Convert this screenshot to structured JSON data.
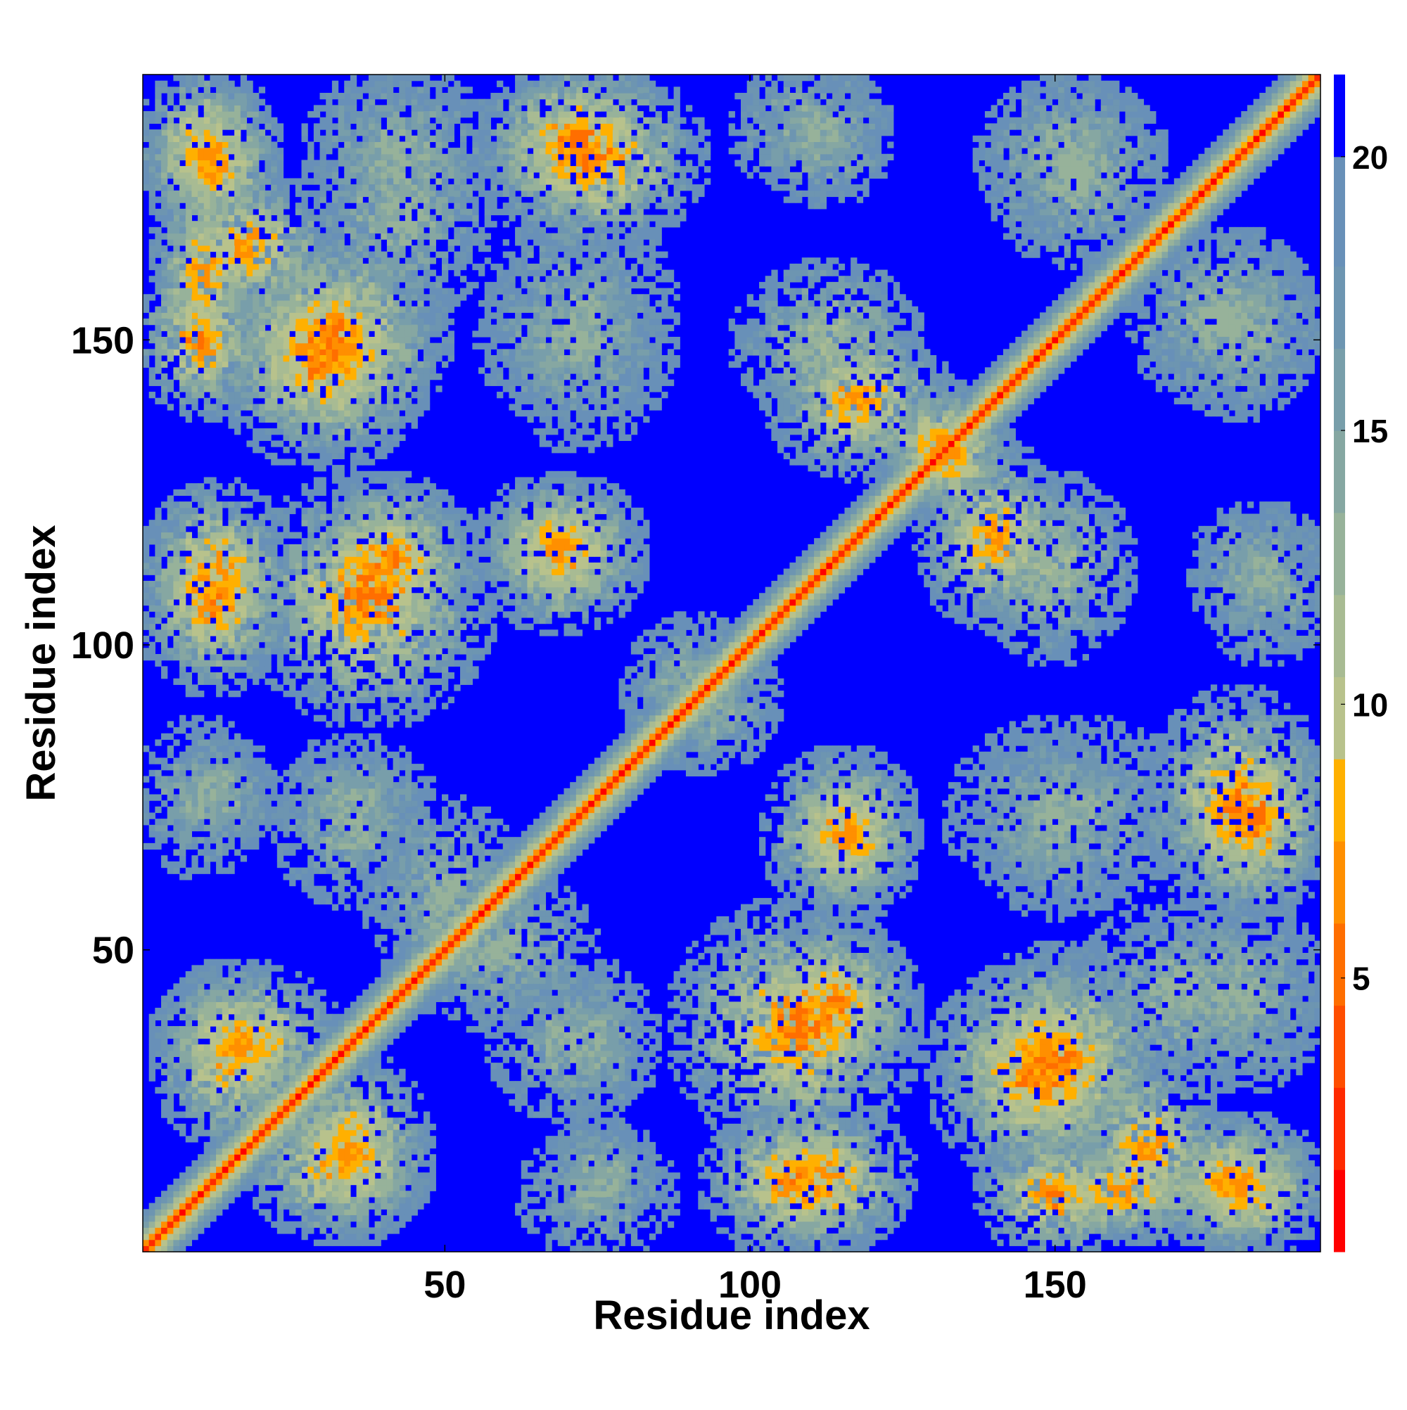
{
  "chart_data": {
    "type": "heatmap",
    "title": "",
    "xlabel": "Residue index",
    "ylabel": "Residue index",
    "xlim": [
      1,
      193
    ],
    "ylim": [
      1,
      193
    ],
    "x_ticks": [
      50,
      100,
      150
    ],
    "y_ticks": [
      50,
      100,
      150
    ],
    "colorbar": {
      "range": [
        0,
        21.5
      ],
      "ticks": [
        5,
        10,
        15,
        20
      ],
      "levels": [
        {
          "from": 0,
          "to": 1.5,
          "color": "#ff0000"
        },
        {
          "from": 1.5,
          "to": 3,
          "color": "#ff2a00"
        },
        {
          "from": 3,
          "to": 4.5,
          "color": "#ff4e00"
        },
        {
          "from": 4.5,
          "to": 6,
          "color": "#ff6e00"
        },
        {
          "from": 6,
          "to": 7.5,
          "color": "#ff8f00"
        },
        {
          "from": 7.5,
          "to": 9,
          "color": "#ffb000"
        },
        {
          "from": 9,
          "to": 10.5,
          "color": "#b8c28c"
        },
        {
          "from": 10.5,
          "to": 12,
          "color": "#a8bb93"
        },
        {
          "from": 12,
          "to": 13.5,
          "color": "#97b29a"
        },
        {
          "from": 13.5,
          "to": 15,
          "color": "#86a7a2"
        },
        {
          "from": 15,
          "to": 16.5,
          "color": "#789eaa"
        },
        {
          "from": 16.5,
          "to": 18,
          "color": "#6d95b1"
        },
        {
          "from": 18,
          "to": 20,
          "color": "#6890b8"
        },
        {
          "from": 20,
          "to": 21.5,
          "color": "#0000ff"
        }
      ]
    },
    "diagonal_band": {
      "core_distance": 3.8,
      "half_width_residues": 6
    },
    "contact_regions": [
      {
        "x": [
          5,
          16
        ],
        "y": [
          146,
          175
        ],
        "min_distance": 6
      },
      {
        "x": [
          4,
          20
        ],
        "y": [
          168,
          190
        ],
        "min_distance": 6
      },
      {
        "x": [
          30,
          55
        ],
        "y": [
          155,
          190
        ],
        "min_distance": 12
      },
      {
        "x": [
          58,
          85
        ],
        "y": [
          172,
          193
        ],
        "min_distance": 5
      },
      {
        "x": [
          100,
          120
        ],
        "y": [
          176,
          193
        ],
        "min_distance": 13
      },
      {
        "x": [
          142,
          165
        ],
        "y": [
          165,
          190
        ],
        "min_distance": 12
      },
      {
        "x": [
          15,
          45
        ],
        "y": [
          132,
          162
        ],
        "min_distance": 5
      },
      {
        "x": [
          58,
          82
        ],
        "y": [
          140,
          160
        ],
        "min_distance": 13
      },
      {
        "x": [
          100,
          125
        ],
        "y": [
          140,
          160
        ],
        "min_distance": 11
      },
      {
        "x": [
          170,
          190
        ],
        "y": [
          140,
          165
        ],
        "min_distance": 12
      },
      {
        "x": [
          30,
          52
        ],
        "y": [
          102,
          125
        ],
        "min_distance": 5
      },
      {
        "x": [
          3,
          22
        ],
        "y": [
          100,
          124
        ],
        "min_distance": 5
      },
      {
        "x": [
          58,
          80
        ],
        "y": [
          108,
          125
        ],
        "min_distance": 6
      },
      {
        "x": [
          130,
          150
        ],
        "y": [
          105,
          130
        ],
        "min_distance": 6
      },
      {
        "x": [
          175,
          190
        ],
        "y": [
          105,
          120
        ],
        "min_distance": 13
      },
      {
        "x": [
          8,
          20
        ],
        "y": [
          70,
          82
        ],
        "min_distance": 13
      },
      {
        "x": [
          25,
          45
        ],
        "y": [
          68,
          82
        ],
        "min_distance": 13
      },
      {
        "x": [
          105,
          125
        ],
        "y": [
          58,
          80
        ],
        "min_distance": 6
      },
      {
        "x": [
          135,
          170
        ],
        "y": [
          60,
          85
        ],
        "min_distance": 13
      },
      {
        "x": [
          168,
          192
        ],
        "y": [
          58,
          90
        ],
        "min_distance": 5
      },
      {
        "x": [
          90,
          125
        ],
        "y": [
          20,
          55
        ],
        "min_distance": 5
      },
      {
        "x": [
          135,
          165
        ],
        "y": [
          15,
          48
        ],
        "min_distance": 5
      },
      {
        "x": [
          155,
          175
        ],
        "y": [
          5,
          30
        ],
        "min_distance": 6
      },
      {
        "x": [
          95,
          120
        ],
        "y": [
          2,
          22
        ],
        "min_distance": 5
      },
      {
        "x": [
          65,
          85
        ],
        "y": [
          2,
          18
        ],
        "min_distance": 13
      },
      {
        "x": [
          140,
          160
        ],
        "y": [
          2,
          18
        ],
        "min_distance": 5
      },
      {
        "x": [
          170,
          192
        ],
        "y": [
          2,
          20
        ],
        "min_distance": 6
      },
      {
        "x": [
          5,
          25
        ],
        "y": [
          20,
          45
        ],
        "min_distance": 6
      },
      {
        "x": [
          25,
          45
        ],
        "y": [
          5,
          30
        ],
        "min_distance": 6
      },
      {
        "x": [
          60,
          80
        ],
        "y": [
          25,
          45
        ],
        "min_distance": 13
      },
      {
        "x": [
          170,
          192
        ],
        "y": [
          30,
          55
        ],
        "min_distance": 13
      },
      {
        "x": [
          40,
          60
        ],
        "y": [
          45,
          72
        ],
        "min_distance": 12
      },
      {
        "x": [
          125,
          140
        ],
        "y": [
          122,
          140
        ],
        "min_distance": 6
      },
      {
        "x": [
          82,
          100
        ],
        "y": [
          84,
          102
        ],
        "min_distance": 12
      }
    ]
  }
}
